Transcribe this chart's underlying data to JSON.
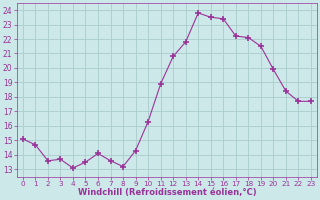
{
  "x": [
    0,
    1,
    2,
    3,
    4,
    5,
    6,
    7,
    8,
    9,
    10,
    11,
    12,
    13,
    14,
    15,
    16,
    17,
    18,
    19,
    20,
    21,
    22,
    23
  ],
  "y": [
    15.1,
    14.7,
    13.6,
    13.7,
    13.1,
    13.5,
    14.1,
    13.6,
    13.2,
    14.3,
    16.3,
    18.9,
    20.8,
    21.8,
    23.8,
    23.5,
    23.4,
    22.2,
    22.1,
    21.5,
    19.9,
    18.4,
    17.7,
    17.7
  ],
  "line_color": "#993399",
  "marker": "+",
  "marker_size": 4,
  "marker_lw": 1.2,
  "bg_color": "#cce8e8",
  "grid_color": "#aacccc",
  "xlabel": "Windchill (Refroidissement éolien,°C)",
  "xlabel_color": "#993399",
  "tick_color": "#993399",
  "ylim": [
    12.5,
    24.5
  ],
  "xlim": [
    -0.5,
    23.5
  ],
  "yticks": [
    13,
    14,
    15,
    16,
    17,
    18,
    19,
    20,
    21,
    22,
    23,
    24
  ],
  "xtick_labels": [
    "0",
    "1",
    "2",
    "3",
    "4",
    "5",
    "6",
    "7",
    "8",
    "9",
    "10",
    "11",
    "12",
    "13",
    "14",
    "15",
    "16",
    "17",
    "18",
    "19",
    "20",
    "21",
    "22",
    "23"
  ]
}
